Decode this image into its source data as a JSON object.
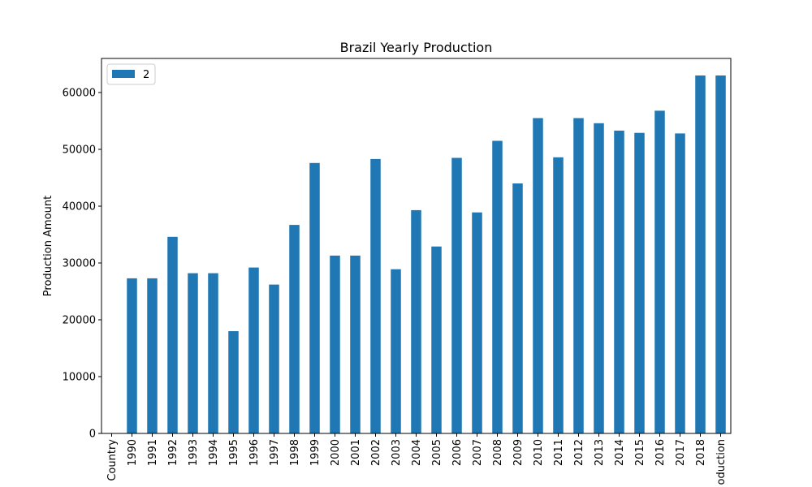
{
  "chart_data": {
    "type": "bar",
    "title": "Brazil Yearly Production",
    "xlabel": "",
    "ylabel": "Production Amount",
    "categories": [
      "Country",
      "1990",
      "1991",
      "1992",
      "1993",
      "1994",
      "1995",
      "1996",
      "1997",
      "1998",
      "1999",
      "2000",
      "2001",
      "2002",
      "2003",
      "2004",
      "2005",
      "2006",
      "2007",
      "2008",
      "2009",
      "2010",
      "2011",
      "2012",
      "2013",
      "2014",
      "2015",
      "2016",
      "2017",
      "2018",
      "oduction"
    ],
    "series": [
      {
        "name": "2",
        "values": [
          null,
          27300,
          27300,
          34600,
          28200,
          28200,
          18000,
          29200,
          26200,
          36700,
          47600,
          31300,
          31300,
          48300,
          28900,
          39300,
          32900,
          48500,
          38900,
          51500,
          44000,
          55500,
          48600,
          55500,
          54600,
          53300,
          52900,
          56800,
          52800,
          63000,
          63000
        ]
      }
    ],
    "ylim": [
      0,
      66000
    ],
    "yticks": [
      0,
      10000,
      20000,
      30000,
      40000,
      50000,
      60000
    ],
    "ytick_labels": [
      "0",
      "10000",
      "20000",
      "30000",
      "40000",
      "50000",
      "60000"
    ],
    "grid": false,
    "legend_position": "upper-left",
    "colors": {
      "bar": "#1f77b4",
      "axes": "#000000",
      "background": "#ffffff"
    }
  }
}
